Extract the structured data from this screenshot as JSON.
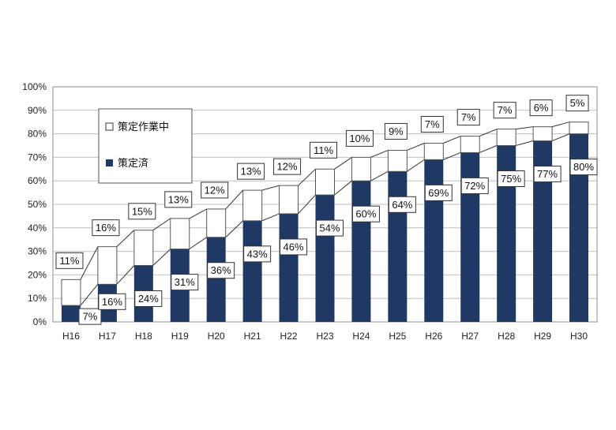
{
  "chart_data": {
    "type": "bar",
    "stacked": true,
    "categories": [
      "H16",
      "H17",
      "H18",
      "H19",
      "H20",
      "H21",
      "H22",
      "H23",
      "H24",
      "H25",
      "H26",
      "H27",
      "H28",
      "H29",
      "H30"
    ],
    "series": [
      {
        "name": "策定済",
        "values": [
          7,
          16,
          24,
          31,
          36,
          43,
          46,
          54,
          60,
          64,
          69,
          72,
          75,
          77,
          80
        ],
        "color": "#1f3864"
      },
      {
        "name": "策定作業中",
        "values": [
          11,
          16,
          15,
          13,
          12,
          13,
          12,
          11,
          10,
          9,
          7,
          7,
          7,
          6,
          5
        ],
        "color": "#ffffff"
      }
    ],
    "labels": {
      "done": [
        "7%",
        "16%",
        "24%",
        "31%",
        "36%",
        "43%",
        "46%",
        "54%",
        "60%",
        "64%",
        "69%",
        "72%",
        "75%",
        "77%",
        "80%"
      ],
      "in_progress": [
        "11%",
        "16%",
        "15%",
        "13%",
        "12%",
        "13%",
        "12%",
        "11%",
        "10%",
        "9%",
        "7%",
        "7%",
        "7%",
        "6%",
        "5%"
      ]
    },
    "ylim": [
      0,
      100
    ],
    "yticks": [
      "0%",
      "10%",
      "20%",
      "30%",
      "40%",
      "50%",
      "60%",
      "70%",
      "80%",
      "90%",
      "100%"
    ],
    "grid": true,
    "legend": {
      "placement": "upper-left",
      "items": [
        {
          "symbol": "□",
          "label": "策定作業中"
        },
        {
          "symbol": "■",
          "label": "策定済"
        }
      ]
    },
    "title": "",
    "xlabel": "",
    "ylabel": ""
  }
}
